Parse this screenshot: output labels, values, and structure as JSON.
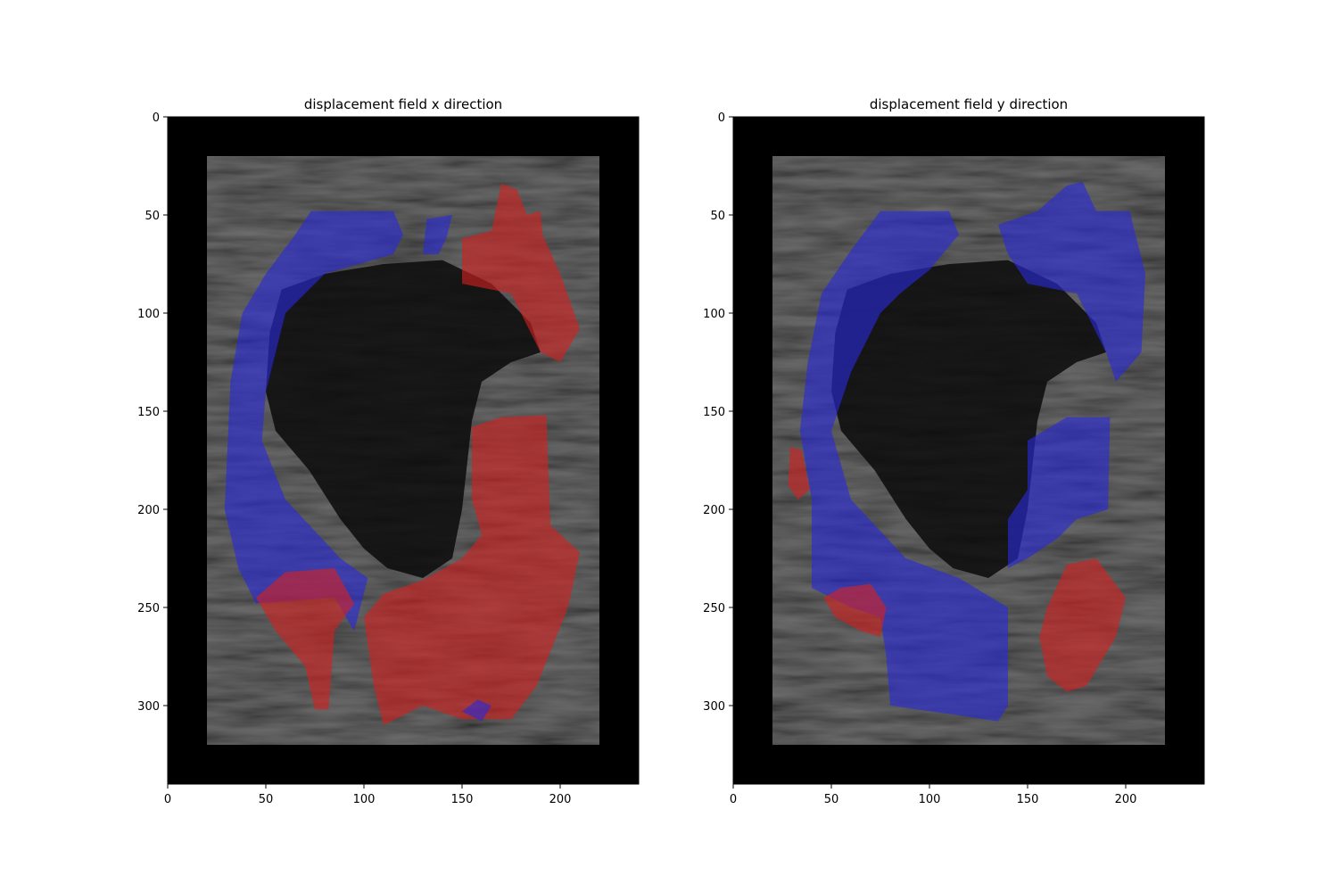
{
  "chart_data": [
    {
      "type": "heatmap",
      "title": "displacement field x direction",
      "xlabel": "",
      "ylabel": "",
      "xlim": [
        0,
        240
      ],
      "ylim": [
        340,
        0
      ],
      "xticks": [
        0,
        50,
        100,
        150,
        200
      ],
      "yticks": [
        0,
        50,
        100,
        150,
        200,
        250,
        300
      ],
      "xtick_labels": [
        "0",
        "50",
        "100",
        "150",
        "200"
      ],
      "ytick_labels": [
        "0",
        "50",
        "100",
        "150",
        "200",
        "250",
        "300"
      ],
      "colors": {
        "positive": "#d42020",
        "negative": "#2a2ad8",
        "background": "#000000"
      },
      "overlay_regions": [
        {
          "sign": "negative",
          "polygon": [
            [
              32,
              135
            ],
            [
              38,
              100
            ],
            [
              50,
              80
            ],
            [
              65,
              60
            ],
            [
              73,
              48
            ],
            [
              115,
              48
            ],
            [
              120,
              60
            ],
            [
              115,
              70
            ],
            [
              80,
              80
            ],
            [
              60,
              100
            ],
            [
              50,
              140
            ],
            [
              48,
              165
            ],
            [
              60,
              195
            ],
            [
              88,
              225
            ],
            [
              102,
              235
            ],
            [
              95,
              262
            ],
            [
              85,
              245
            ],
            [
              45,
              248
            ],
            [
              36,
              230
            ],
            [
              29,
              200
            ]
          ]
        },
        {
          "sign": "negative",
          "polygon": [
            [
              132,
              52
            ],
            [
              145,
              50
            ],
            [
              142,
              62
            ],
            [
              138,
              70
            ],
            [
              130,
              70
            ]
          ]
        },
        {
          "sign": "positive",
          "polygon": [
            [
              150,
              62
            ],
            [
              165,
              58
            ],
            [
              170,
              34
            ],
            [
              178,
              37
            ],
            [
              183,
              50
            ],
            [
              190,
              48
            ],
            [
              191,
              60
            ],
            [
              200,
              80
            ],
            [
              210,
              108
            ],
            [
              200,
              125
            ],
            [
              190,
              120
            ],
            [
              175,
              90
            ],
            [
              150,
              85
            ]
          ]
        },
        {
          "sign": "positive",
          "polygon": [
            [
              155,
              158
            ],
            [
              170,
              153
            ],
            [
              193,
              152
            ],
            [
              195,
              208
            ],
            [
              210,
              222
            ],
            [
              204,
              250
            ],
            [
              188,
              290
            ],
            [
              175,
              307
            ],
            [
              150,
              307
            ],
            [
              130,
              300
            ],
            [
              110,
              310
            ],
            [
              105,
              290
            ],
            [
              100,
              255
            ],
            [
              110,
              243
            ],
            [
              130,
              236
            ],
            [
              150,
              225
            ],
            [
              160,
              213
            ],
            [
              155,
              195
            ]
          ]
        },
        {
          "sign": "positive",
          "polygon": [
            [
              45,
              245
            ],
            [
              60,
              232
            ],
            [
              85,
              230
            ],
            [
              95,
              248
            ],
            [
              85,
              262
            ],
            [
              82,
              302
            ],
            [
              75,
              302
            ],
            [
              70,
              280
            ],
            [
              55,
              262
            ]
          ]
        },
        {
          "sign": "negative",
          "polygon": [
            [
              150,
              303
            ],
            [
              160,
              308
            ],
            [
              165,
              300
            ],
            [
              158,
              297
            ]
          ]
        }
      ]
    },
    {
      "type": "heatmap",
      "title": "displacement field y direction",
      "xlabel": "",
      "ylabel": "",
      "xlim": [
        0,
        240
      ],
      "ylim": [
        340,
        0
      ],
      "xticks": [
        0,
        50,
        100,
        150,
        200
      ],
      "yticks": [
        0,
        50,
        100,
        150,
        200,
        250,
        300
      ],
      "xtick_labels": [
        "0",
        "50",
        "100",
        "150",
        "200"
      ],
      "ytick_labels": [
        "0",
        "50",
        "100",
        "150",
        "200",
        "250",
        "300"
      ],
      "colors": {
        "positive": "#d42020",
        "negative": "#2a2ad8",
        "background": "#000000"
      },
      "overlay_regions": [
        {
          "sign": "negative",
          "polygon": [
            [
              40,
              195
            ],
            [
              34,
              160
            ],
            [
              38,
              125
            ],
            [
              45,
              90
            ],
            [
              60,
              68
            ],
            [
              75,
              48
            ],
            [
              110,
              48
            ],
            [
              115,
              60
            ],
            [
              100,
              78
            ],
            [
              85,
              90
            ],
            [
              75,
              100
            ],
            [
              60,
              130
            ],
            [
              50,
              160
            ],
            [
              60,
              195
            ],
            [
              88,
              225
            ],
            [
              115,
              235
            ],
            [
              140,
              250
            ],
            [
              140,
              300
            ],
            [
              135,
              308
            ],
            [
              115,
              305
            ],
            [
              80,
              300
            ],
            [
              78,
              275
            ],
            [
              75,
              255
            ],
            [
              60,
              250
            ],
            [
              40,
              240
            ]
          ]
        },
        {
          "sign": "negative",
          "polygon": [
            [
              135,
              55
            ],
            [
              155,
              48
            ],
            [
              170,
              35
            ],
            [
              178,
              33
            ],
            [
              185,
              48
            ],
            [
              202,
              48
            ],
            [
              210,
              80
            ],
            [
              208,
              120
            ],
            [
              195,
              135
            ],
            [
              190,
              120
            ],
            [
              175,
              90
            ],
            [
              150,
              85
            ],
            [
              140,
              70
            ]
          ]
        },
        {
          "sign": "negative",
          "polygon": [
            [
              150,
              165
            ],
            [
              170,
              153
            ],
            [
              192,
              153
            ],
            [
              191,
              200
            ],
            [
              175,
              205
            ],
            [
              165,
              215
            ],
            [
              150,
              225
            ],
            [
              140,
              230
            ],
            [
              140,
              205
            ],
            [
              150,
              190
            ]
          ]
        },
        {
          "sign": "positive",
          "polygon": [
            [
              160,
              250
            ],
            [
              170,
              228
            ],
            [
              185,
              225
            ],
            [
              200,
              245
            ],
            [
              195,
              265
            ],
            [
              180,
              290
            ],
            [
              170,
              293
            ],
            [
              160,
              285
            ],
            [
              156,
              265
            ]
          ]
        },
        {
          "sign": "positive",
          "polygon": [
            [
              29,
              168
            ],
            [
              35,
              170
            ],
            [
              39,
              190
            ],
            [
              33,
              195
            ],
            [
              28,
              188
            ]
          ]
        },
        {
          "sign": "positive",
          "polygon": [
            [
              46,
              245
            ],
            [
              55,
              240
            ],
            [
              70,
              238
            ],
            [
              78,
              250
            ],
            [
              75,
              265
            ],
            [
              65,
              262
            ],
            [
              52,
              255
            ]
          ]
        }
      ]
    }
  ]
}
